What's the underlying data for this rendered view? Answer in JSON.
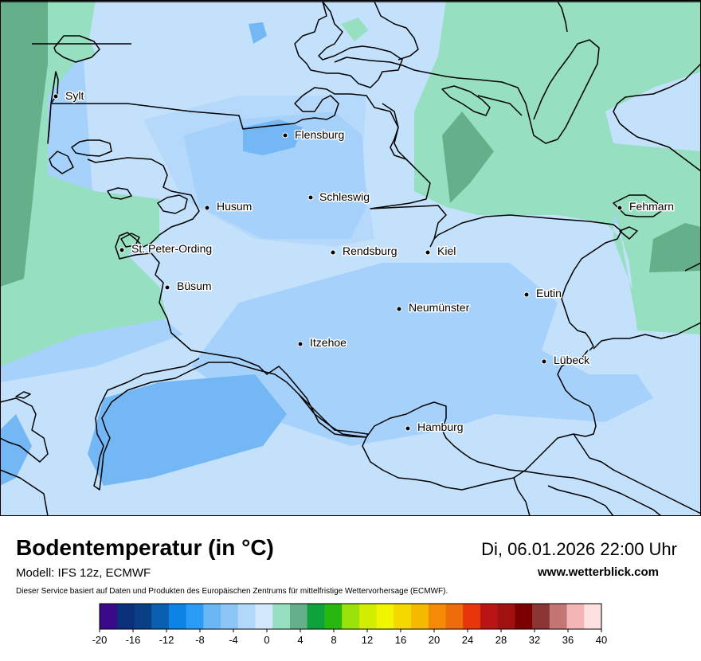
{
  "map": {
    "cities": [
      {
        "name": "Sylt"
      },
      {
        "name": "Flensburg"
      },
      {
        "name": "Schleswig"
      },
      {
        "name": "Husum"
      },
      {
        "name": "Fehmarn"
      },
      {
        "name": "St. Peter-Ording"
      },
      {
        "name": "Rendsburg"
      },
      {
        "name": "Kiel"
      },
      {
        "name": "Büsum"
      },
      {
        "name": "Eutin"
      },
      {
        "name": "Neumünster"
      },
      {
        "name": "Itzehoe"
      },
      {
        "name": "Lübeck"
      },
      {
        "name": "Hamburg"
      }
    ]
  },
  "footer": {
    "title": "Bodentemperatur (in °C)",
    "model": "Modell: IFS 12z, ECMWF",
    "note": "Dieser Service basiert auf Daten und Produkten des Europäischen Zentrums für mittelfristige Wettervorhersage (ECMWF).",
    "datetime": "Di, 06.01.2026 22:00 Uhr",
    "website": "www.wetterblick.com"
  },
  "legend": {
    "unit": "°C",
    "min": -20,
    "max": 40,
    "step": 2,
    "tick_labels": [
      "-20",
      "-16",
      "-12",
      "-8",
      "-4",
      "0",
      "4",
      "8",
      "12",
      "16",
      "20",
      "24",
      "28",
      "32",
      "36",
      "40"
    ],
    "colors": [
      "#3b0a8a",
      "#0b2f7a",
      "#0a3f85",
      "#0a5fb0",
      "#0b84e6",
      "#2a9cf5",
      "#6bb6f5",
      "#8ec5f7",
      "#b2d8fb",
      "#d4e8fd",
      "#96dfc0",
      "#64b08a",
      "#0ea33a",
      "#27b70f",
      "#9be10a",
      "#d2ee00",
      "#f0f500",
      "#f4d800",
      "#f5b900",
      "#f58b05",
      "#ef6c0b",
      "#e8350b",
      "#b91515",
      "#a01212",
      "#7d0000",
      "#8b3535",
      "#c47676",
      "#f3b5b5",
      "#fde0e0"
    ]
  }
}
